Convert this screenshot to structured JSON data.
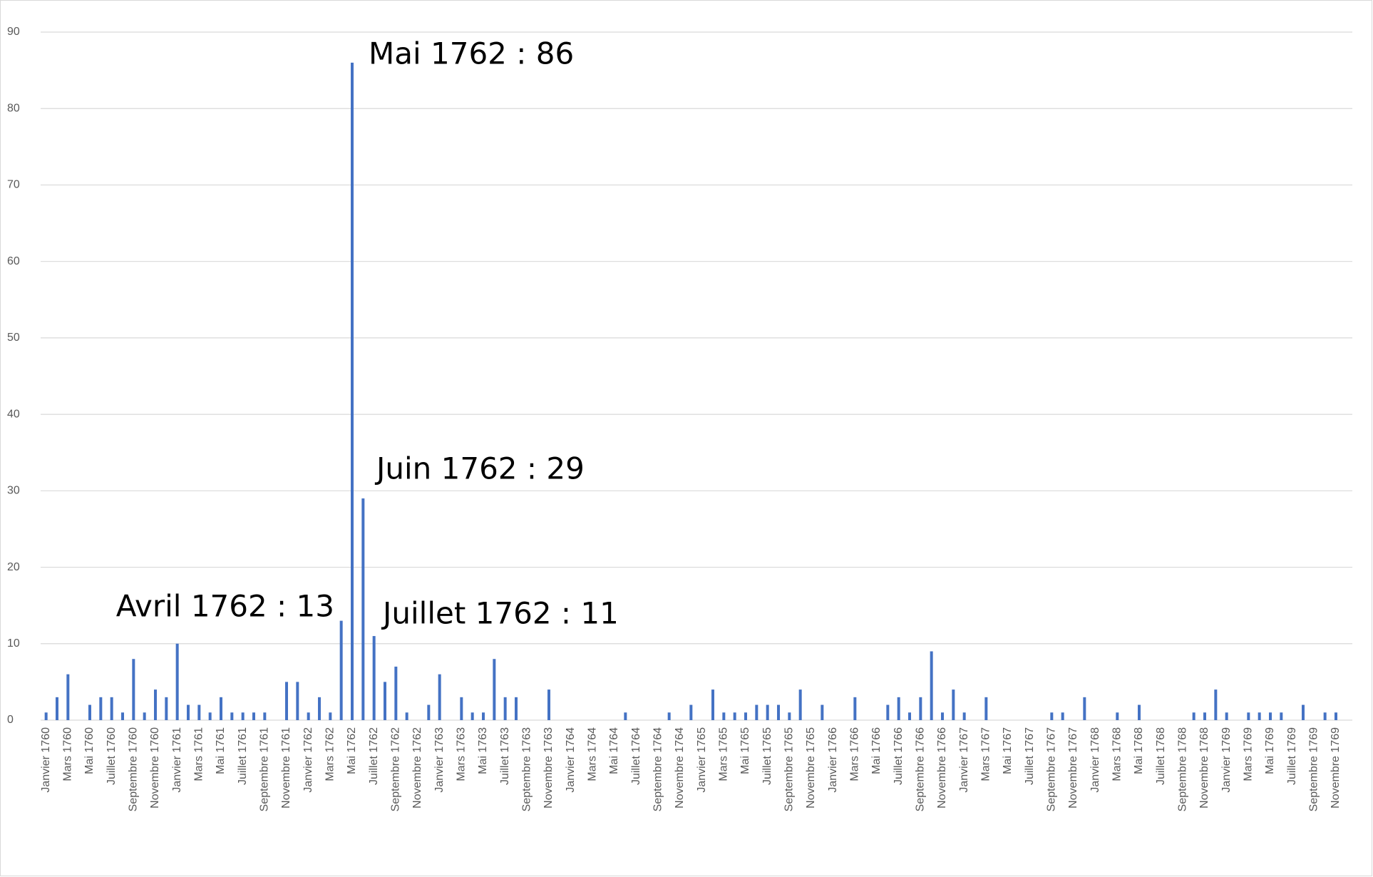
{
  "chart_data": {
    "type": "bar",
    "categories": [
      "Janvier 1760",
      null,
      "Mars 1760",
      null,
      "Mai 1760",
      null,
      "Juillet 1760",
      null,
      "Septembre 1760",
      null,
      "Novembre 1760",
      null,
      "Janvier 1761",
      null,
      "Mars 1761",
      null,
      "Mai 1761",
      null,
      "Juillet 1761",
      null,
      "Septembre 1761",
      null,
      "Novembre 1761",
      null,
      "Janvier 1762",
      null,
      "Mars 1762",
      null,
      "Mai 1762",
      null,
      "Juillet 1762",
      null,
      "Septembre 1762",
      null,
      "Novembre 1762",
      null,
      "Janvier 1763",
      null,
      "Mars 1763",
      null,
      "Mai 1763",
      null,
      "Juillet 1763",
      null,
      "Septembre 1763",
      null,
      "Novembre 1763",
      null,
      "Janvier 1764",
      null,
      "Mars 1764",
      null,
      "Mai 1764",
      null,
      "Juillet 1764",
      null,
      "Septembre 1764",
      null,
      "Novembre 1764",
      null,
      "Janvier 1765",
      null,
      "Mars 1765",
      null,
      "Mai 1765",
      null,
      "Juillet 1765",
      null,
      "Septembre 1765",
      null,
      "Novembre 1765",
      null,
      "Janvier 1766",
      null,
      "Mars 1766",
      null,
      "Mai 1766",
      null,
      "Juillet 1766",
      null,
      "Septembre 1766",
      null,
      "Novembre 1766",
      null,
      "Janvier 1767",
      null,
      "Mars 1767",
      null,
      "Mai 1767",
      null,
      "Juillet 1767",
      null,
      "Septembre 1767",
      null,
      "Novembre 1767",
      null,
      "Janvier 1768",
      null,
      "Mars 1768",
      null,
      "Mai 1768",
      null,
      "Juillet 1768",
      null,
      "Septembre 1768",
      null,
      "Novembre 1768",
      null,
      "Janvier 1769",
      null,
      "Mars 1769",
      null,
      "Mai 1769",
      null,
      "Juillet 1769",
      null,
      "Septembre 1769",
      null,
      "Novembre 1769",
      null
    ],
    "values": [
      1,
      3,
      6,
      0,
      2,
      3,
      3,
      1,
      8,
      1,
      4,
      3,
      10,
      2,
      2,
      1,
      3,
      1,
      1,
      1,
      1,
      0,
      5,
      5,
      1,
      3,
      1,
      13,
      86,
      29,
      11,
      5,
      7,
      1,
      0,
      2,
      6,
      0,
      3,
      1,
      1,
      8,
      3,
      3,
      0,
      0,
      4,
      0,
      0,
      0,
      0,
      0,
      0,
      1,
      0,
      0,
      0,
      1,
      0,
      2,
      0,
      4,
      1,
      1,
      1,
      2,
      2,
      2,
      1,
      4,
      0,
      2,
      0,
      0,
      3,
      0,
      0,
      2,
      3,
      1,
      3,
      9,
      1,
      4,
      1,
      0,
      3,
      0,
      0,
      0,
      0,
      0,
      1,
      1,
      0,
      3,
      0,
      0,
      1,
      0,
      2,
      0,
      0,
      0,
      0,
      1,
      1,
      4,
      1,
      0,
      1,
      1,
      1,
      1,
      0,
      2,
      0,
      1,
      1,
      0
    ],
    "color": "#4472c4",
    "ylim": [
      0,
      90
    ],
    "yticks": [
      0,
      10,
      20,
      30,
      40,
      50,
      60,
      70,
      80,
      90
    ],
    "grid": true,
    "annotations": [
      "Mai 1762 : 86",
      "Juin 1762 : 29",
      "Avril 1762 : 13",
      "Juillet 1762 : 11"
    ]
  }
}
